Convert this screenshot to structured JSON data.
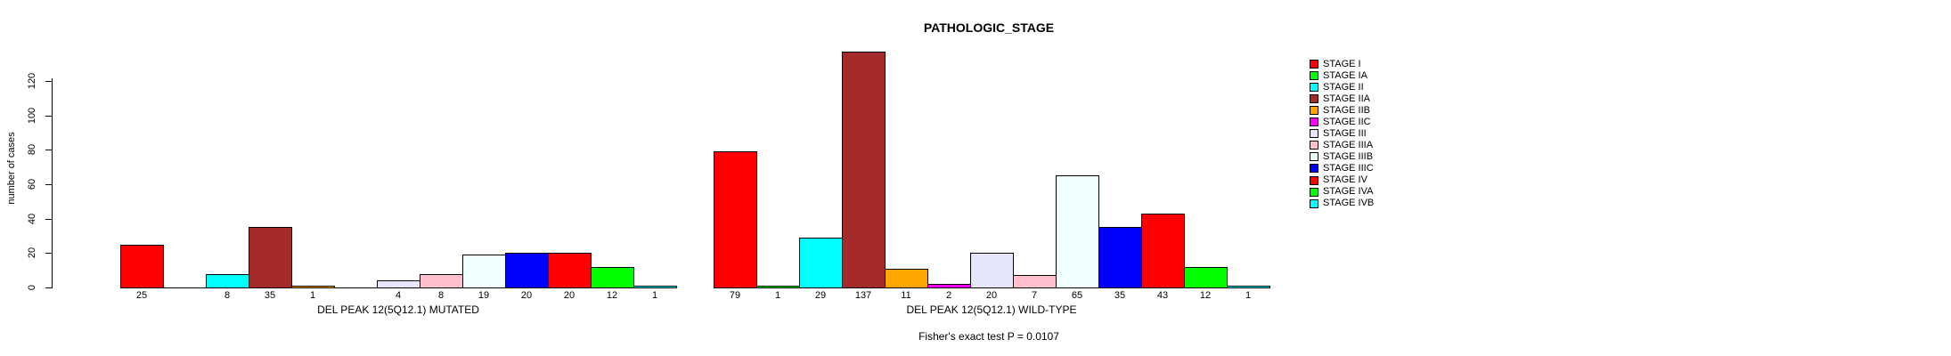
{
  "title": "PATHOLOGIC_STAGE",
  "footer": "Fisher's exact test P = 0.0107",
  "chart_data": {
    "type": "bar",
    "title": "PATHOLOGIC_STAGE",
    "ylabel": "number of cases",
    "yticks": [
      0,
      20,
      40,
      60,
      80,
      100,
      120
    ],
    "ylim": [
      0,
      137
    ],
    "grid": false,
    "legend_position": "right",
    "categories": [
      "STAGE I",
      "STAGE IA",
      "STAGE II",
      "STAGE IIA",
      "STAGE IIB",
      "STAGE IIC",
      "STAGE III",
      "STAGE IIIA",
      "STAGE IIIB",
      "STAGE IIIC",
      "STAGE IV",
      "STAGE IVA",
      "STAGE IVB"
    ],
    "colors": [
      "#FF0000",
      "#00FF00",
      "#00FFFF",
      "#A52A2A",
      "#FFA500",
      "#FF00FF",
      "#E6E6FA",
      "#FFC0CB",
      "#F0FFFF",
      "#0000FF",
      "#FF0000",
      "#00FF00",
      "#00FFFF"
    ],
    "series": [
      {
        "name": "DEL PEAK 12(5Q12.1) MUTATED",
        "values": [
          25,
          0,
          8,
          35,
          1,
          0,
          4,
          8,
          19,
          20,
          20,
          12,
          1
        ]
      },
      {
        "name": "DEL PEAK 12(5Q12.1) WILD-TYPE",
        "values": [
          79,
          1,
          29,
          137,
          11,
          2,
          20,
          7,
          65,
          35,
          43,
          12,
          1
        ]
      }
    ],
    "annotation": "Fisher's exact test P = 0.0107"
  }
}
